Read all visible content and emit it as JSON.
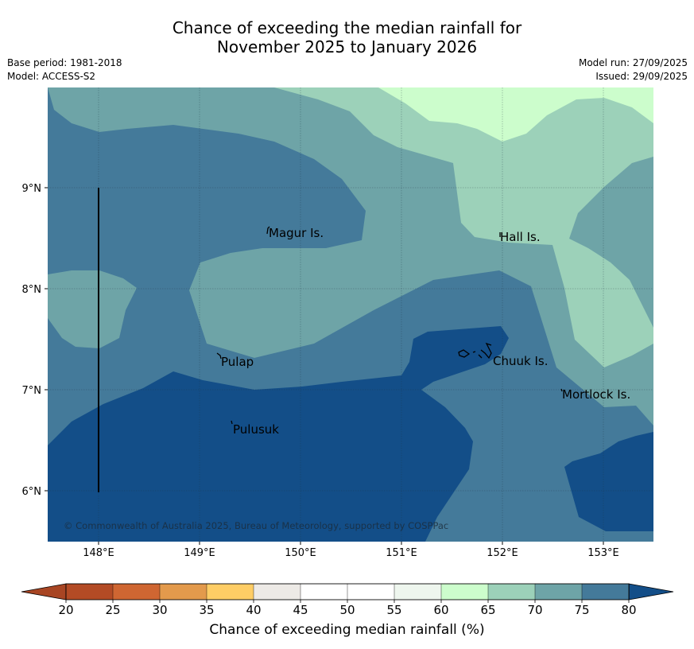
{
  "title": {
    "line1": "Chance of exceeding the median rainfall for",
    "line2": "November 2025 to January 2026"
  },
  "meta": {
    "base_period": "Base period: 1981-2018",
    "model": "Model: ACCESS-S2",
    "model_run": "Model run: 27/09/2025",
    "issued": "Issued: 29/09/2025"
  },
  "axes": {
    "x_ticks": [
      "148°E",
      "149°E",
      "150°E",
      "151°E",
      "152°E",
      "153°E"
    ],
    "y_ticks": [
      "9°N",
      "8°N",
      "7°N",
      "6°N"
    ]
  },
  "places": [
    "Magur Is.",
    "Hall Is.",
    "Pulap",
    "Chuuk Is.",
    "Mortlock Is.",
    "Pulusuk"
  ],
  "copyright": "© Commonwealth of Australia 2025, Bureau of Meteorology, supported by COSPPac",
  "colorbar": {
    "label": "Chance of exceeding median rainfall (%)",
    "ticks": [
      "20",
      "25",
      "30",
      "35",
      "40",
      "45",
      "50",
      "55",
      "60",
      "65",
      "70",
      "75",
      "80"
    ],
    "colors": [
      "#b34b25",
      "#cf6632",
      "#e39a4c",
      "#fecd65",
      "#edeae6",
      "#ffffff",
      "#ffffff",
      "#eef6ee",
      "#ccfdcc",
      "#9cd1b9",
      "#6ea4a7",
      "#447a9a"
    ],
    "under_color": "#a84523",
    "over_color": "#134e88"
  },
  "map_colors": {
    "c60_65": "#ccfdcc",
    "c65_70": "#9cd1b9",
    "c70_75": "#6ea4a7",
    "c75_80": "#447a9a",
    "c80": "#134e88"
  }
}
